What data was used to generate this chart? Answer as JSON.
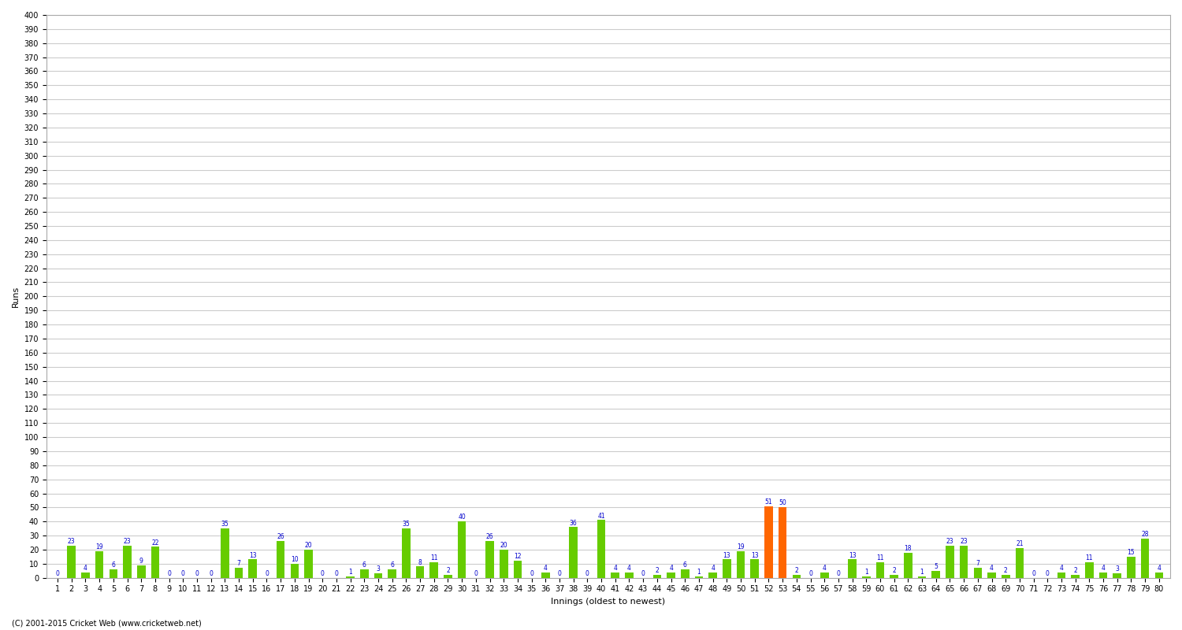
{
  "title": "",
  "xlabel": "Innings (oldest to newest)",
  "ylabel": "Runs",
  "ylim": [
    0,
    400
  ],
  "yticks": [
    0,
    10,
    20,
    30,
    40,
    50,
    60,
    70,
    80,
    90,
    100,
    110,
    120,
    130,
    140,
    150,
    160,
    170,
    180,
    190,
    200,
    210,
    220,
    230,
    240,
    250,
    260,
    270,
    280,
    290,
    300,
    310,
    320,
    330,
    340,
    350,
    360,
    370,
    380,
    390,
    400
  ],
  "innings": [
    1,
    2,
    3,
    4,
    5,
    6,
    7,
    8,
    9,
    10,
    11,
    12,
    13,
    14,
    15,
    16,
    17,
    18,
    19,
    20,
    21,
    22,
    23,
    24,
    25,
    26,
    27,
    28,
    29,
    30,
    31,
    32,
    33,
    34,
    35,
    36,
    37,
    38,
    39,
    40,
    41,
    42,
    43,
    44,
    45,
    46,
    47,
    48,
    49,
    50,
    51,
    52,
    53,
    54,
    55,
    56,
    57,
    58,
    59,
    60,
    61,
    62,
    63,
    64,
    65,
    66,
    67,
    68,
    69,
    70,
    71,
    72,
    73,
    74,
    75,
    76,
    77,
    78,
    79,
    80
  ],
  "scores": [
    0,
    23,
    4,
    19,
    6,
    23,
    9,
    22,
    0,
    0,
    0,
    0,
    35,
    7,
    13,
    0,
    26,
    10,
    20,
    0,
    0,
    1,
    6,
    3,
    6,
    35,
    8,
    11,
    2,
    40,
    0,
    26,
    20,
    12,
    0,
    4,
    0,
    36,
    0,
    41,
    4,
    4,
    0,
    2,
    4,
    6,
    1,
    4,
    13,
    19,
    13,
    51,
    50,
    2,
    0,
    4,
    0,
    13,
    1,
    11,
    2,
    18,
    1,
    5,
    23,
    23,
    7,
    4,
    2,
    21,
    0,
    0,
    4,
    2,
    11,
    4,
    3,
    15,
    28,
    4
  ],
  "colors": [
    "#66cc00",
    "#66cc00",
    "#66cc00",
    "#66cc00",
    "#66cc00",
    "#66cc00",
    "#66cc00",
    "#66cc00",
    "#66cc00",
    "#66cc00",
    "#66cc00",
    "#66cc00",
    "#66cc00",
    "#66cc00",
    "#66cc00",
    "#66cc00",
    "#66cc00",
    "#66cc00",
    "#66cc00",
    "#66cc00",
    "#66cc00",
    "#66cc00",
    "#66cc00",
    "#66cc00",
    "#66cc00",
    "#66cc00",
    "#66cc00",
    "#66cc00",
    "#66cc00",
    "#66cc00",
    "#66cc00",
    "#66cc00",
    "#66cc00",
    "#66cc00",
    "#66cc00",
    "#66cc00",
    "#66cc00",
    "#66cc00",
    "#66cc00",
    "#66cc00",
    "#66cc00",
    "#66cc00",
    "#66cc00",
    "#66cc00",
    "#66cc00",
    "#66cc00",
    "#66cc00",
    "#66cc00",
    "#66cc00",
    "#66cc00",
    "#66cc00",
    "#ff6600",
    "#ff6600",
    "#66cc00",
    "#66cc00",
    "#66cc00",
    "#66cc00",
    "#66cc00",
    "#66cc00",
    "#66cc00",
    "#66cc00",
    "#66cc00",
    "#66cc00",
    "#66cc00",
    "#66cc00",
    "#66cc00",
    "#66cc00",
    "#66cc00",
    "#66cc00",
    "#66cc00",
    "#66cc00",
    "#66cc00",
    "#66cc00",
    "#66cc00",
    "#66cc00",
    "#66cc00",
    "#66cc00",
    "#66cc00",
    "#66cc00",
    "#66cc00"
  ],
  "label_color": "#0000cc",
  "bar_width": 0.6,
  "grid_color": "#cccccc",
  "bg_color": "#ffffff",
  "plot_bg_color": "#ffffff",
  "label_fontsize": 5.5,
  "axis_fontsize": 7,
  "footer": "(C) 2001-2015 Cricket Web (www.cricketweb.net)"
}
